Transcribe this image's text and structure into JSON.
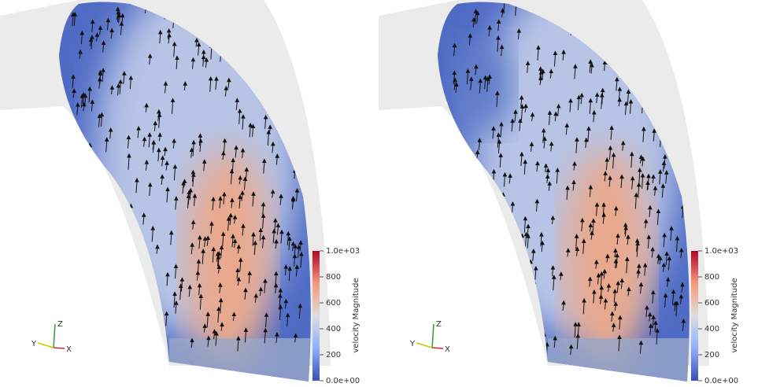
{
  "panels": [
    {
      "colorbar": {
        "title": "velocity Magnitude",
        "ticks": [
          {
            "value": 1000,
            "label": "1.0e+03"
          },
          800,
          600,
          400,
          200,
          {
            "value": 0,
            "label": "0.0e+00"
          }
        ]
      },
      "axes": [
        "Z",
        "Y",
        "X"
      ]
    },
    {
      "colorbar": {
        "title": "velocity Magnitude",
        "ticks": [
          {
            "value": 1000,
            "label": "1.0e+03"
          },
          800,
          600,
          400,
          200,
          {
            "value": 0,
            "label": "0.0e+00"
          }
        ]
      },
      "axes": [
        "Z",
        "Y",
        "X"
      ]
    }
  ]
}
